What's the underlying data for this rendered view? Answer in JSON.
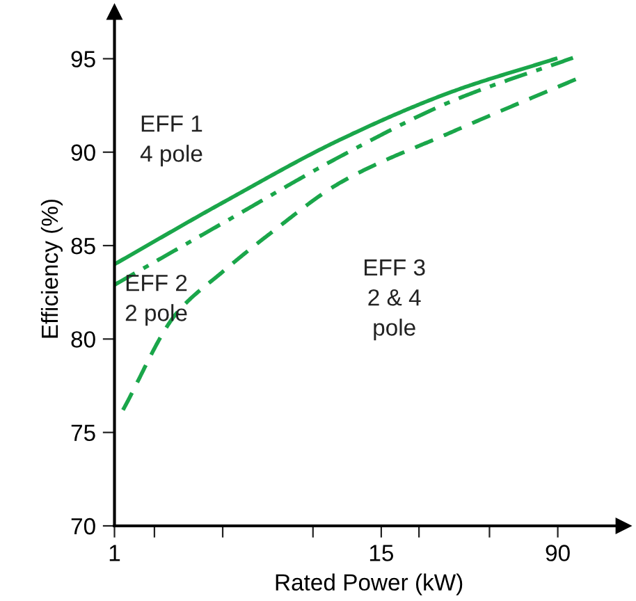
{
  "chart_data": {
    "type": "line",
    "xlabel": "Rated Power (kW)",
    "ylabel": "Efficiency (%)",
    "log": "x",
    "xlim": [
      1,
      175
    ],
    "ylim": [
      70,
      97.5
    ],
    "xticks": [
      1,
      {
        "value": 1.5,
        "label": null
      },
      {
        "value": 3,
        "label": null
      },
      {
        "value": 7.5,
        "label": null
      },
      15,
      {
        "value": 22,
        "label": null
      },
      {
        "value": 45,
        "label": null
      },
      90
    ],
    "yticks": [
      70,
      75,
      80,
      85,
      90,
      95
    ],
    "grid": false,
    "series": [
      {
        "color": "#1aa64a",
        "line_style": "solid",
        "x": [
          1,
          3,
          10,
          31,
          88
        ],
        "values": [
          84.0,
          87.3,
          90.7,
          93.25,
          95.0
        ]
      },
      {
        "color": "#1aa64a",
        "line_style": "dashdot",
        "x": [
          1,
          3,
          10,
          31,
          105
        ],
        "values": [
          82.9,
          86.2,
          89.8,
          92.75,
          95.05
        ]
      },
      {
        "color": "#1aa64a",
        "line_style": "dashed",
        "x": [
          1.09,
          1.87,
          3,
          4.8,
          10,
          31,
          108
        ],
        "values": [
          76.2,
          81.35,
          83.6,
          85.6,
          88.4,
          91.1,
          93.9
        ]
      }
    ],
    "annotations": [
      "EFF 1\n4 pole",
      "EFF 2\n2 pole",
      "EFF 3\n2 & 4\npole"
    ]
  }
}
